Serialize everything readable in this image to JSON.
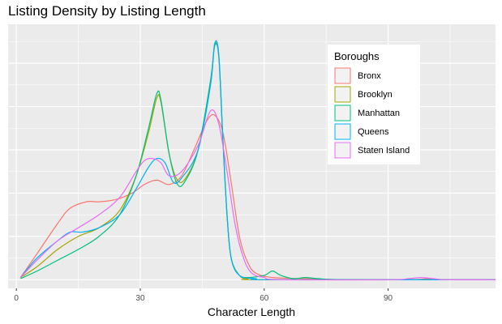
{
  "chart_data": {
    "type": "line",
    "title": "Listing Density by Listing Length",
    "xlabel": "Character Length",
    "ylabel": "",
    "xlim": [
      -2,
      116
    ],
    "ylim": [
      -0.004,
      0.118
    ],
    "x_ticks": [
      0,
      30,
      60,
      90
    ],
    "y_ticks": [],
    "grid": true,
    "legend": {
      "title": "Boroughs",
      "position": "top-right"
    },
    "series": [
      {
        "name": "Bronx",
        "color": "#F8766D",
        "points": [
          [
            1,
            0.001
          ],
          [
            5,
            0.012
          ],
          [
            10,
            0.026
          ],
          [
            13,
            0.033
          ],
          [
            17,
            0.036
          ],
          [
            20,
            0.036
          ],
          [
            24,
            0.037
          ],
          [
            28,
            0.04
          ],
          [
            31,
            0.044
          ],
          [
            34,
            0.046
          ],
          [
            37,
            0.044
          ],
          [
            40,
            0.048
          ],
          [
            43,
            0.06
          ],
          [
            46,
            0.073
          ],
          [
            48,
            0.076
          ],
          [
            50,
            0.068
          ],
          [
            52,
            0.045
          ],
          [
            54,
            0.02
          ],
          [
            56,
            0.008
          ],
          [
            58,
            0.003
          ],
          [
            62,
            0.001
          ],
          [
            70,
            0.0005
          ],
          [
            80,
            0
          ],
          [
            95,
            0
          ],
          [
            100,
            0.0005
          ],
          [
            104,
            0
          ],
          [
            116,
            0
          ]
        ]
      },
      {
        "name": "Brooklyn",
        "color": "#A3A500",
        "points": [
          [
            1,
            0.001
          ],
          [
            5,
            0.006
          ],
          [
            10,
            0.014
          ],
          [
            15,
            0.02
          ],
          [
            20,
            0.024
          ],
          [
            25,
            0.032
          ],
          [
            29,
            0.048
          ],
          [
            32,
            0.068
          ],
          [
            34,
            0.084
          ],
          [
            35,
            0.082
          ],
          [
            37,
            0.058
          ],
          [
            39,
            0.046
          ],
          [
            41,
            0.047
          ],
          [
            44,
            0.06
          ],
          [
            47,
            0.09
          ],
          [
            48,
            0.108
          ],
          [
            49,
            0.104
          ],
          [
            50,
            0.065
          ],
          [
            51,
            0.03
          ],
          [
            52,
            0.01
          ],
          [
            54,
            0.002
          ],
          [
            56,
            0.0005
          ],
          [
            60,
            0
          ],
          [
            116,
            0
          ]
        ]
      },
      {
        "name": "Manhattan",
        "color": "#00BF7D",
        "points": [
          [
            1,
            0.0005
          ],
          [
            5,
            0.004
          ],
          [
            10,
            0.009
          ],
          [
            15,
            0.014
          ],
          [
            20,
            0.02
          ],
          [
            25,
            0.03
          ],
          [
            29,
            0.048
          ],
          [
            32,
            0.07
          ],
          [
            34,
            0.086
          ],
          [
            35,
            0.083
          ],
          [
            37,
            0.058
          ],
          [
            39,
            0.044
          ],
          [
            41,
            0.046
          ],
          [
            44,
            0.06
          ],
          [
            47,
            0.092
          ],
          [
            48,
            0.108
          ],
          [
            49,
            0.103
          ],
          [
            50,
            0.064
          ],
          [
            51,
            0.03
          ],
          [
            52,
            0.01
          ],
          [
            54,
            0.002
          ],
          [
            56,
            0.001
          ],
          [
            60,
            0.002
          ],
          [
            62,
            0.004
          ],
          [
            64,
            0.002
          ],
          [
            67,
            0.0005
          ],
          [
            70,
            0.001
          ],
          [
            73,
            0.0005
          ],
          [
            80,
            0
          ],
          [
            116,
            0
          ]
        ]
      },
      {
        "name": "Queens",
        "color": "#00B0F6",
        "points": [
          [
            1,
            0.001
          ],
          [
            5,
            0.01
          ],
          [
            10,
            0.018
          ],
          [
            13,
            0.022
          ],
          [
            16,
            0.022
          ],
          [
            20,
            0.024
          ],
          [
            25,
            0.03
          ],
          [
            29,
            0.042
          ],
          [
            32,
            0.052
          ],
          [
            34,
            0.056
          ],
          [
            36,
            0.054
          ],
          [
            38,
            0.045
          ],
          [
            40,
            0.047
          ],
          [
            44,
            0.06
          ],
          [
            47,
            0.09
          ],
          [
            48,
            0.109
          ],
          [
            49,
            0.104
          ],
          [
            50,
            0.065
          ],
          [
            51,
            0.03
          ],
          [
            52,
            0.01
          ],
          [
            54,
            0.002
          ],
          [
            58,
            0.0005
          ],
          [
            62,
            0
          ],
          [
            116,
            0
          ]
        ]
      },
      {
        "name": "Staten Island",
        "color": "#E76BF3",
        "points": [
          [
            1,
            0.001
          ],
          [
            5,
            0.009
          ],
          [
            10,
            0.018
          ],
          [
            15,
            0.024
          ],
          [
            20,
            0.03
          ],
          [
            25,
            0.038
          ],
          [
            29,
            0.05
          ],
          [
            31,
            0.055
          ],
          [
            33,
            0.056
          ],
          [
            35,
            0.054
          ],
          [
            37,
            0.048
          ],
          [
            40,
            0.05
          ],
          [
            44,
            0.062
          ],
          [
            47,
            0.078
          ],
          [
            49,
            0.072
          ],
          [
            51,
            0.05
          ],
          [
            53,
            0.025
          ],
          [
            55,
            0.01
          ],
          [
            57,
            0.003
          ],
          [
            60,
            0.001
          ],
          [
            64,
            0
          ],
          [
            90,
            0
          ],
          [
            95,
            0.0005
          ],
          [
            98,
            0.001
          ],
          [
            101,
            0.0005
          ],
          [
            104,
            0
          ],
          [
            116,
            0
          ]
        ]
      }
    ]
  }
}
